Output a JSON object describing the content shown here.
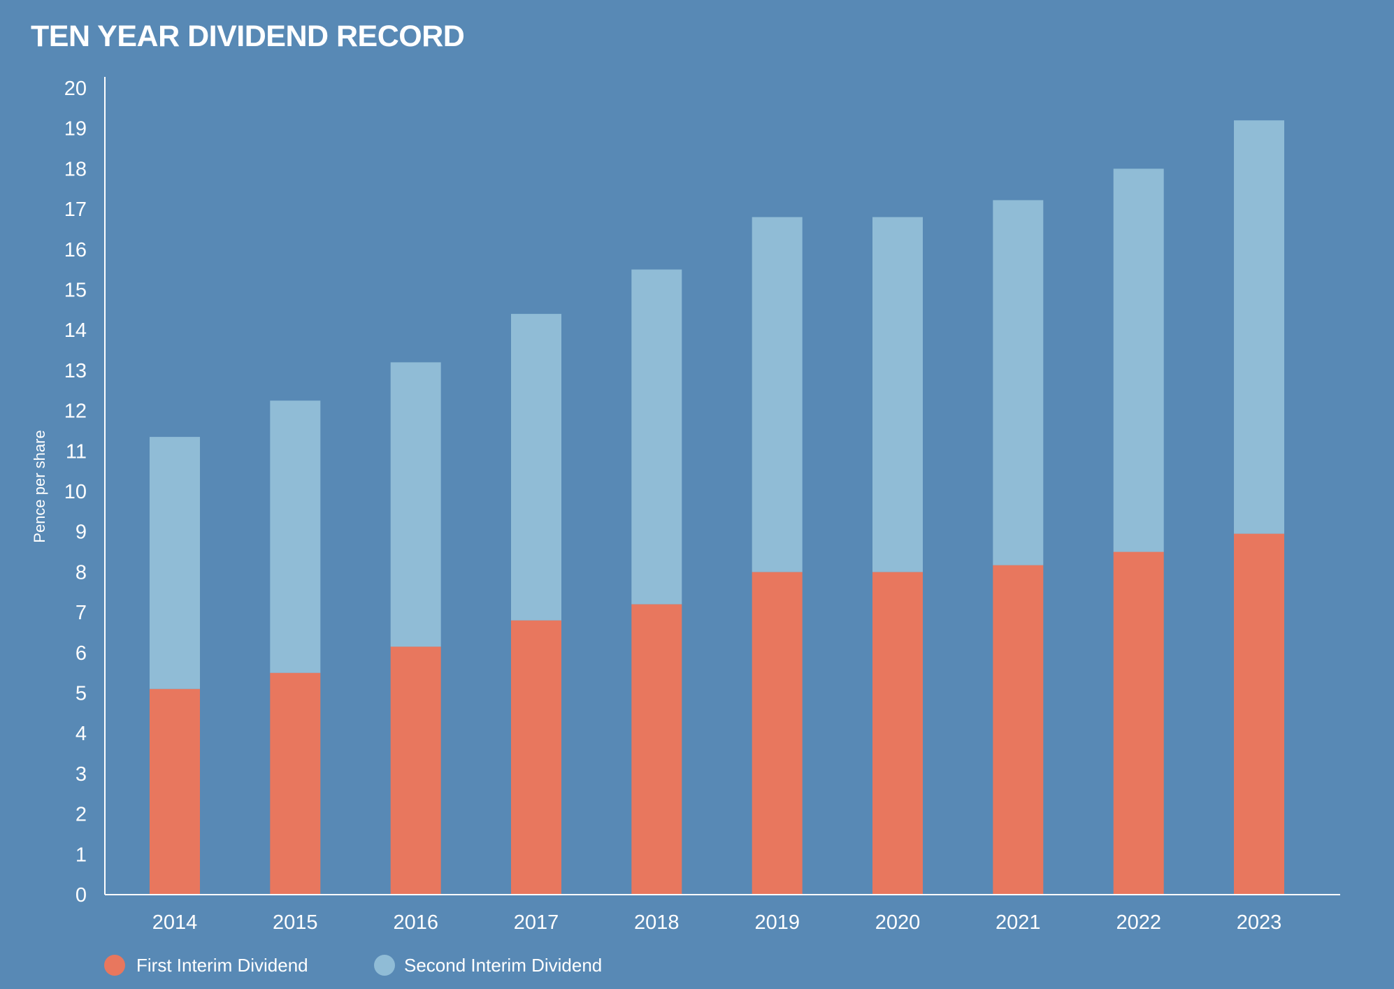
{
  "chart_data": {
    "type": "bar",
    "stacked": true,
    "title": "TEN YEAR DIVIDEND RECORD",
    "xlabel": "",
    "ylabel": "Pence per share",
    "ylim": [
      0,
      20
    ],
    "yticks": [
      0,
      1,
      2,
      3,
      4,
      5,
      6,
      7,
      8,
      9,
      10,
      11,
      12,
      13,
      14,
      15,
      16,
      17,
      18,
      19,
      20
    ],
    "categories": [
      "2014",
      "2015",
      "2016",
      "2017",
      "2018",
      "2019",
      "2020",
      "2021",
      "2022",
      "2023"
    ],
    "series": [
      {
        "name": "First Interim Dividend",
        "color": "#e8775e",
        "values": [
          5.1,
          5.5,
          6.15,
          6.8,
          7.2,
          8.0,
          8.0,
          8.17,
          8.5,
          8.95
        ]
      },
      {
        "name": "Second Interim Dividend",
        "color": "#90bcd6",
        "values": [
          6.25,
          6.75,
          7.05,
          7.6,
          8.3,
          8.8,
          8.8,
          9.05,
          9.5,
          10.25
        ]
      }
    ],
    "grid": false,
    "legend_position": "bottom-left",
    "background_color": "#5889b5",
    "axis_color": "#ffffff"
  }
}
